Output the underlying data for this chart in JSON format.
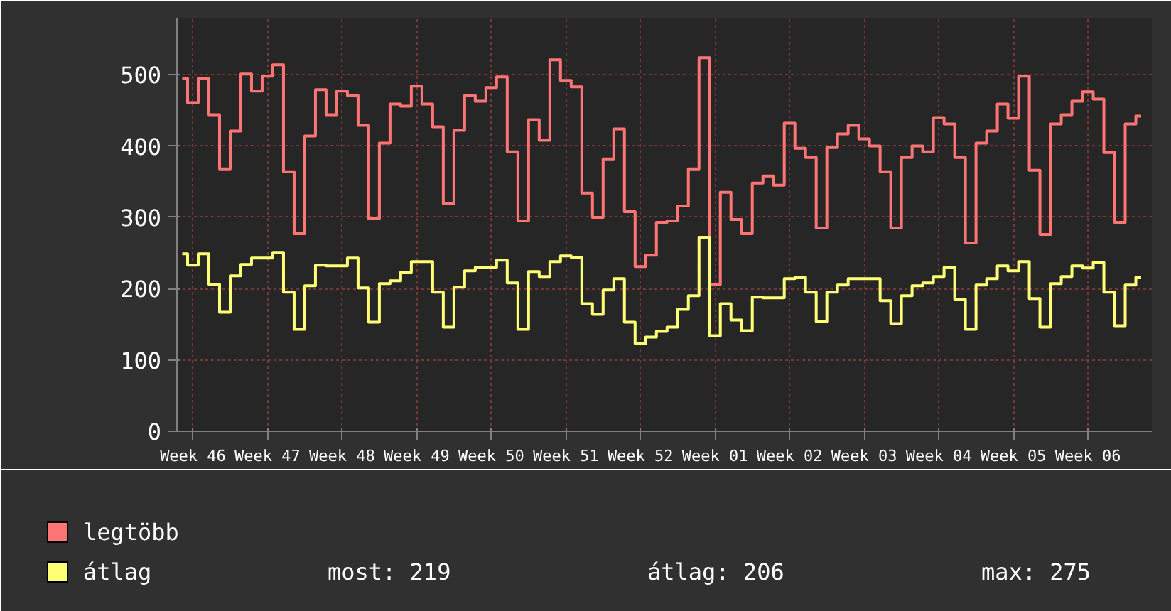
{
  "chart_data": {
    "type": "step",
    "categories": [
      null,
      "Week 46",
      null,
      null,
      null,
      null,
      null,
      null,
      "Week 47",
      null,
      null,
      null,
      null,
      null,
      null,
      "Week 48",
      null,
      null,
      null,
      null,
      null,
      null,
      "Week 49",
      null,
      null,
      null,
      null,
      null,
      null,
      "Week 50",
      null,
      null,
      null,
      null,
      null,
      null,
      "Week 51",
      null,
      null,
      null,
      null,
      null,
      null,
      "Week 52",
      null,
      null,
      null,
      null,
      null,
      null,
      "Week 01",
      null,
      null,
      null,
      null,
      null,
      null,
      "Week 02",
      null,
      null,
      null,
      null,
      null,
      null,
      "Week 03",
      null,
      null,
      null,
      null,
      null,
      null,
      "Week 04",
      null,
      null,
      null,
      null,
      null,
      null,
      "Week 05",
      null,
      null,
      null,
      null,
      null,
      null,
      "Week 06",
      null,
      null,
      null,
      null,
      null
    ],
    "series": [
      {
        "name": "legtöbb",
        "color": "#ff7575",
        "values": [
          495,
          461,
          495,
          444,
          368,
          421,
          501,
          477,
          498,
          514,
          364,
          277,
          414,
          479,
          444,
          477,
          471,
          429,
          298,
          404,
          459,
          456,
          484,
          459,
          427,
          319,
          422,
          471,
          463,
          482,
          497,
          392,
          295,
          437,
          408,
          521,
          492,
          483,
          334,
          300,
          382,
          424,
          308,
          231,
          247,
          293,
          295,
          316,
          368,
          524,
          206,
          335,
          297,
          277,
          348,
          358,
          345,
          432,
          397,
          384,
          285,
          398,
          417,
          429,
          410,
          400,
          364,
          285,
          384,
          400,
          392,
          440,
          431,
          384,
          264,
          404,
          421,
          459,
          439,
          498,
          366,
          276,
          431,
          444,
          463,
          476,
          466,
          391,
          293,
          431,
          442
        ]
      },
      {
        "name": "átlag",
        "color": "#ffff75",
        "values": [
          249,
          233,
          249,
          206,
          167,
          218,
          234,
          243,
          243,
          251,
          195,
          143,
          204,
          233,
          232,
          232,
          243,
          201,
          153,
          207,
          211,
          223,
          238,
          238,
          195,
          146,
          202,
          225,
          230,
          230,
          240,
          208,
          143,
          224,
          217,
          238,
          246,
          244,
          179,
          164,
          198,
          214,
          153,
          123,
          132,
          140,
          146,
          171,
          190,
          272,
          134,
          179,
          156,
          141,
          188,
          187,
          187,
          214,
          216,
          195,
          154,
          195,
          205,
          214,
          214,
          214,
          183,
          151,
          190,
          204,
          208,
          217,
          230,
          185,
          143,
          205,
          214,
          232,
          225,
          238,
          186,
          146,
          207,
          217,
          232,
          229,
          237,
          195,
          148,
          205,
          216
        ]
      }
    ],
    "ylim": [
      0,
      580
    ],
    "yticks": [
      0,
      100,
      200,
      300,
      400,
      500
    ],
    "grid": true,
    "legend": "bottom",
    "annotations": [
      "most: 219",
      "átlag: 206",
      "max: 275"
    ]
  }
}
